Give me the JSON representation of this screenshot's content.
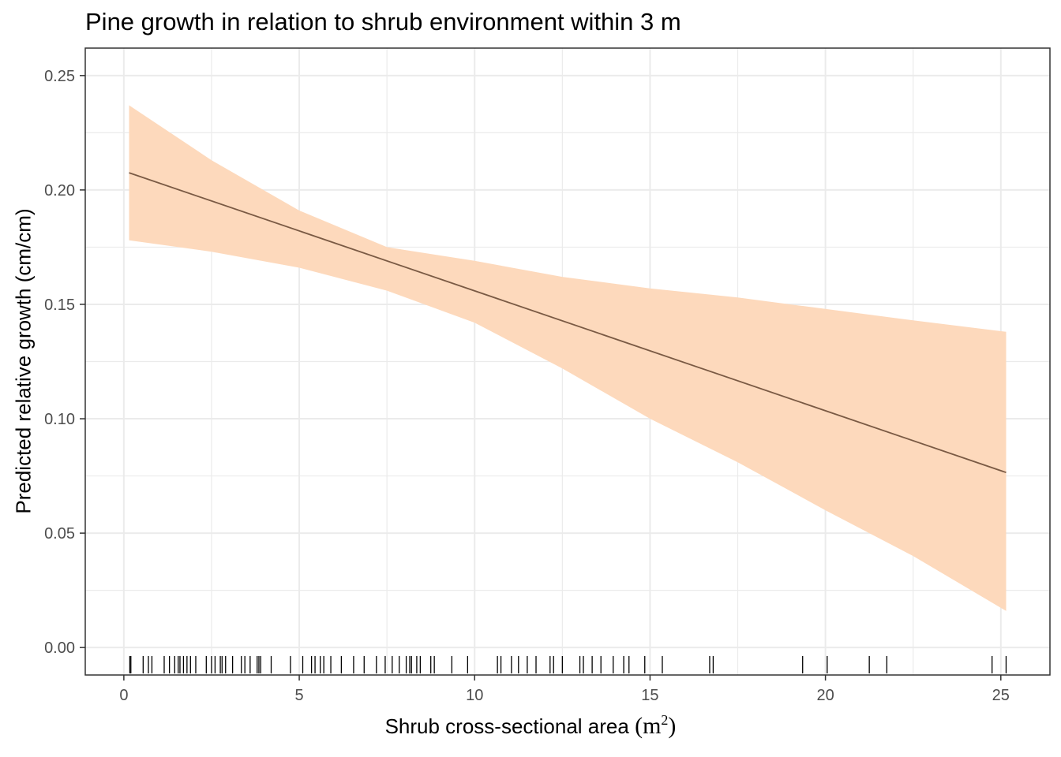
{
  "chart_data": {
    "type": "line",
    "title": "Pine growth in relation to shrub environment within 3 m",
    "xlabel_text": "Shrub cross-sectional area",
    "xlabel_unit": "(m",
    "xlabel_unit_exp": "2",
    "xlabel_unit_close": ")",
    "ylabel": "Predicted relative growth (cm/cm)",
    "xlim": [
      -1.1,
      26.4
    ],
    "ylim": [
      -0.012,
      0.262
    ],
    "x_ticks": [
      0,
      5,
      10,
      15,
      20,
      25
    ],
    "x_tick_labels": [
      "0",
      "5",
      "10",
      "15",
      "20",
      "25"
    ],
    "y_ticks": [
      0.0,
      0.05,
      0.1,
      0.15,
      0.2,
      0.25
    ],
    "y_tick_labels": [
      "0.00",
      "0.05",
      "0.10",
      "0.15",
      "0.20",
      "0.25"
    ],
    "grid": true,
    "legend": "none",
    "fit_line": {
      "x": [
        0.15,
        25.15
      ],
      "y": [
        0.2075,
        0.0765
      ]
    },
    "confidence_band": {
      "x": [
        0.15,
        2.5,
        5.0,
        7.5,
        10.0,
        12.5,
        15.0,
        17.5,
        20.0,
        22.5,
        25.15
      ],
      "lower": [
        0.178,
        0.173,
        0.166,
        0.156,
        0.142,
        0.122,
        0.1,
        0.081,
        0.06,
        0.04,
        0.016
      ],
      "upper": [
        0.237,
        0.213,
        0.191,
        0.175,
        0.169,
        0.162,
        0.157,
        0.153,
        0.148,
        0.143,
        0.138
      ]
    },
    "rug_x": [
      0.17,
      0.2,
      0.55,
      0.7,
      0.8,
      1.15,
      1.3,
      1.45,
      1.55,
      1.6,
      1.7,
      1.8,
      1.9,
      2.05,
      2.35,
      2.5,
      2.6,
      2.75,
      2.8,
      2.9,
      3.1,
      3.35,
      3.45,
      3.6,
      3.8,
      3.85,
      3.9,
      4.2,
      4.75,
      5.1,
      5.35,
      5.45,
      5.6,
      5.7,
      5.9,
      6.2,
      6.55,
      6.85,
      7.2,
      7.45,
      7.65,
      7.85,
      8.05,
      8.15,
      8.2,
      8.35,
      8.45,
      8.75,
      8.85,
      9.35,
      9.8,
      10.65,
      10.75,
      11.05,
      11.25,
      11.5,
      11.75,
      12.15,
      12.25,
      12.5,
      13.0,
      13.1,
      13.35,
      13.6,
      13.95,
      14.25,
      14.4,
      14.85,
      15.35,
      16.7,
      16.8,
      19.35,
      20.05,
      21.25,
      21.75,
      24.75,
      25.15
    ],
    "colors": {
      "line": "#7a5a44",
      "band": "#fdd9bc",
      "grid": "#ebebeb",
      "panel_border": "#333333",
      "rug": "#000000",
      "tick_text": "#4d4d4d"
    }
  }
}
